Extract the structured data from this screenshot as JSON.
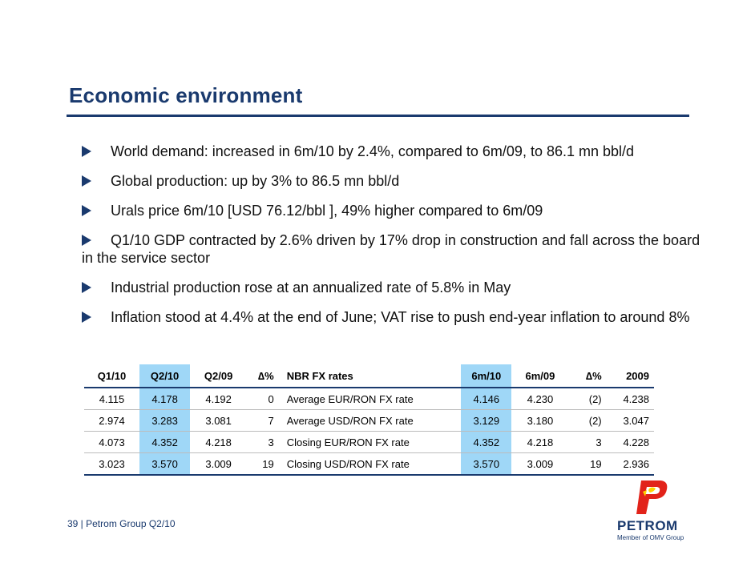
{
  "slide": {
    "title": "Economic environment",
    "bullets": [
      "World demand: increased in 6m/10 by 2.4%, compared to 6m/09, to 86.1 mn bbl/d",
      "Global production: up by 3% to 86.5 mn bbl/d",
      "Urals price 6m/10 [USD 76.12/bbl ], 49% higher compared to 6m/09",
      "Q1/10 GDP contracted by 2.6% driven by 17% drop in construction and fall across the board in the service sector",
      "Industrial production rose at an annualized rate of 5.8% in May",
      "Inflation stood at 4.4% at the end of June; VAT rise to push end-year inflation to around 8%"
    ]
  },
  "table": {
    "headers": [
      "Q1/10",
      "Q2/10",
      "Q2/09",
      "∆%",
      "NBR FX rates",
      "6m/10",
      "6m/09",
      "∆%",
      "2009"
    ],
    "rows": [
      [
        "4.115",
        "4.178",
        "4.192",
        "0",
        "Average EUR/RON FX rate",
        "4.146",
        "4.230",
        "(2)",
        "4.238"
      ],
      [
        "2.974",
        "3.283",
        "3.081",
        "7",
        "Average USD/RON FX rate",
        "3.129",
        "3.180",
        "(2)",
        "3.047"
      ],
      [
        "4.073",
        "4.352",
        "4.218",
        "3",
        "Closing EUR/RON FX rate",
        "4.352",
        "4.218",
        "3",
        "4.228"
      ],
      [
        "3.023",
        "3.570",
        "3.009",
        "19",
        "Closing USD/RON FX rate",
        "3.570",
        "3.009",
        "19",
        "2.936"
      ]
    ]
  },
  "footer": {
    "text": "39 | Petrom Group Q2/10"
  },
  "logo": {
    "name": "PETROM",
    "subtitle": "Member of OMV Group"
  },
  "colors": {
    "navy": "#1a3a6e",
    "highlight": "#9fd7f7",
    "logo_red": "#e2231a",
    "logo_yellow": "#ffd200"
  }
}
